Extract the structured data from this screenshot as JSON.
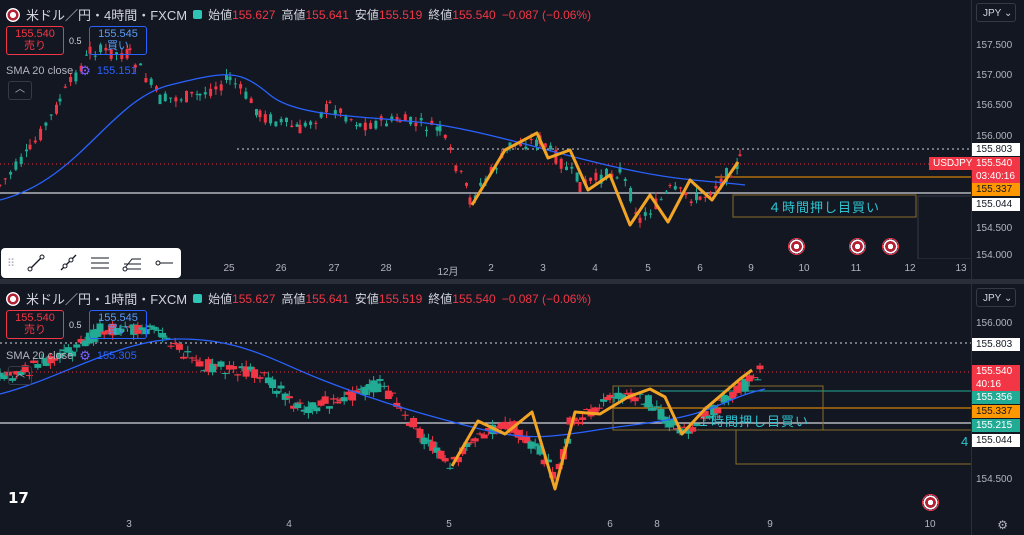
{
  "colors": {
    "up": "#22ab94",
    "down": "#f23645",
    "ma": "#2962ff",
    "trend": "#f2a525",
    "bg": "#131722"
  },
  "pane1": {
    "symbol": "米ドル／円・4時間・FXCM",
    "ohlc": [
      {
        "l": "始値",
        "v": "155.627"
      },
      {
        "l": "高値",
        "v": "155.641"
      },
      {
        "l": "安値",
        "v": "155.519"
      },
      {
        "l": "終値",
        "v": "155.540"
      },
      {
        "l": "",
        "v": "−0.087 (−0.06%)"
      }
    ],
    "sell": {
      "price": "155.540",
      "label": "売り"
    },
    "buy": {
      "price": "155.545",
      "label": "買い"
    },
    "spread": "0.5",
    "sma": {
      "label": "SMA 20 close",
      "value": "155.151"
    },
    "currency": "JPY",
    "price_axis": [
      "157.500",
      "157.000",
      "156.500",
      "156.000",
      "154.500",
      "154.000"
    ],
    "tags": [
      {
        "text": "155.803",
        "kind": "white"
      },
      {
        "text": "USDJPY",
        "kind": "red-label"
      },
      {
        "text": "155.540",
        "kind": "red"
      },
      {
        "text": "03:40:16",
        "kind": "red-sub"
      },
      {
        "text": "155.337",
        "kind": "orange"
      },
      {
        "text": "155.044",
        "kind": "white"
      }
    ],
    "x_axis": [
      "25",
      "26",
      "27",
      "28",
      "12月",
      "2",
      "3",
      "4",
      "5",
      "6",
      "9",
      "10",
      "11",
      "12",
      "13"
    ],
    "annotation": "４時間押し目買い"
  },
  "pane2": {
    "symbol": "米ドル／円・1時間・FXCM",
    "ohlc": [
      {
        "l": "始値",
        "v": "155.627"
      },
      {
        "l": "高値",
        "v": "155.641"
      },
      {
        "l": "安値",
        "v": "155.519"
      },
      {
        "l": "終値",
        "v": "155.540"
      },
      {
        "l": "",
        "v": "−0.087 (−0.06%)"
      }
    ],
    "sell": {
      "price": "155.540",
      "label": "売り"
    },
    "buy": {
      "price": "155.545",
      "label": "買い"
    },
    "spread": "0.5",
    "sma": {
      "label": "SMA 20 close",
      "value": "155.305"
    },
    "currency": "JPY",
    "price_axis": [
      "156.000",
      "154.500"
    ],
    "tags": [
      {
        "text": "155.803",
        "kind": "white"
      },
      {
        "text": "155.540",
        "kind": "red"
      },
      {
        "text": "40:16",
        "kind": "red-sub"
      },
      {
        "text": "155.356",
        "kind": "green"
      },
      {
        "text": "155.337",
        "kind": "orange"
      },
      {
        "text": "155.215",
        "kind": "green"
      },
      {
        "text": "155.044",
        "kind": "white"
      }
    ],
    "x_axis": [
      "3",
      "4",
      "5",
      "6",
      "8",
      "9",
      "10"
    ],
    "annotation": "１時間押し目買い",
    "annotation2": "4"
  }
}
